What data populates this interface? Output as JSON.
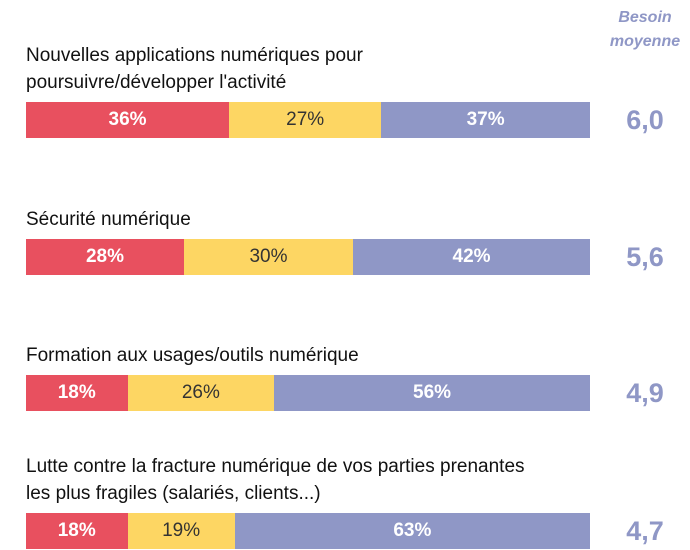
{
  "chart_data": {
    "type": "stacked_bar_100",
    "categories": [
      "Nouvelles applications numériques pour poursuivre/développer l'activité",
      "Sécurité numérique",
      "Formation aux usages/outils numérique",
      "Lutte contre la fracture numérique de vos parties prenantes les plus fragiles (salariés, clients...)"
    ],
    "series": [
      {
        "color": "#e8505f",
        "values": [
          36,
          28,
          18,
          18
        ],
        "value_labels": [
          "36%",
          "28%",
          "18%",
          "18%"
        ]
      },
      {
        "color": "#fdd663",
        "values": [
          27,
          30,
          26,
          19
        ],
        "value_labels": [
          "27%",
          "30%",
          "26%",
          "19%"
        ]
      },
      {
        "color": "#8f97c6",
        "values": [
          37,
          42,
          56,
          63
        ],
        "value_labels": [
          "37%",
          "42%",
          "56%",
          "63%"
        ]
      }
    ],
    "means": {
      "header": "Besoin moyenne",
      "color": "#8f97c6",
      "values": [
        6.0,
        5.6,
        4.9,
        4.7
      ],
      "value_labels": [
        "6,0",
        "5,6",
        "4,9",
        "4,7"
      ]
    }
  }
}
